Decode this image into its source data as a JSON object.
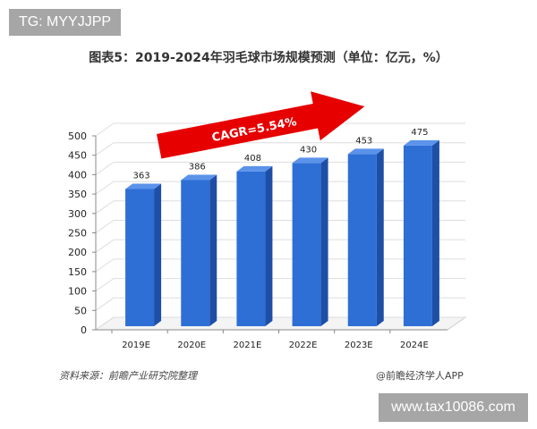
{
  "watermark_top": "TG: MYYJJPP",
  "watermark_bottom": "www.tax10086.com",
  "source": "资料来源：前瞻产业研究院整理",
  "credit": "@前瞻经济学人APP",
  "chart_data": {
    "type": "bar",
    "title": "图表5：2019-2024年羽毛球市场规模预测（单位：亿元，%）",
    "categories": [
      "2019E",
      "2020E",
      "2021E",
      "2022E",
      "2023E",
      "2024E"
    ],
    "values": [
      363,
      386,
      408,
      430,
      453,
      475
    ],
    "ylim": [
      0,
      500
    ],
    "yticks": [
      0,
      50,
      100,
      150,
      200,
      250,
      300,
      350,
      400,
      450,
      500
    ],
    "grid": true,
    "annotation": "CAGR=5.54%",
    "colors": {
      "bar": "#2e6fd6",
      "bar_side": "#1d4fa6",
      "bar_top": "#5b93ea",
      "arrow": "#e60000"
    }
  }
}
